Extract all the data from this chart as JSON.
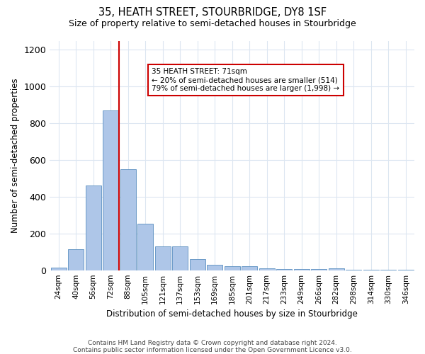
{
  "title": "35, HEATH STREET, STOURBRIDGE, DY8 1SF",
  "subtitle": "Size of property relative to semi-detached houses in Stourbridge",
  "xlabel": "Distribution of semi-detached houses by size in Stourbridge",
  "ylabel": "Number of semi-detached properties",
  "footnote1": "Contains HM Land Registry data © Crown copyright and database right 2024.",
  "footnote2": "Contains public sector information licensed under the Open Government Licence v3.0.",
  "property_size": 71,
  "annotation_text1": "35 HEATH STREET: 71sqm",
  "annotation_text2": "← 20% of semi-detached houses are smaller (514)",
  "annotation_text3": "79% of semi-detached houses are larger (1,998) →",
  "bin_labels": [
    "24sqm",
    "40sqm",
    "56sqm",
    "72sqm",
    "88sqm",
    "105sqm",
    "121sqm",
    "137sqm",
    "153sqm",
    "169sqm",
    "185sqm",
    "201sqm",
    "217sqm",
    "233sqm",
    "249sqm",
    "266sqm",
    "282sqm",
    "298sqm",
    "314sqm",
    "330sqm",
    "346sqm"
  ],
  "values": [
    15,
    115,
    460,
    870,
    550,
    255,
    130,
    130,
    60,
    30,
    20,
    20,
    10,
    5,
    5,
    5,
    10,
    2,
    2,
    2,
    2
  ],
  "bar_color": "#aec6e8",
  "bar_edge_color": "#5a8fc0",
  "vline_color": "#cc0000",
  "annotation_box_color": "#cc0000",
  "grid_color": "#dce6f1",
  "background_color": "#ffffff",
  "ylim": [
    0,
    1250
  ],
  "yticks": [
    0,
    200,
    400,
    600,
    800,
    1000,
    1200
  ]
}
